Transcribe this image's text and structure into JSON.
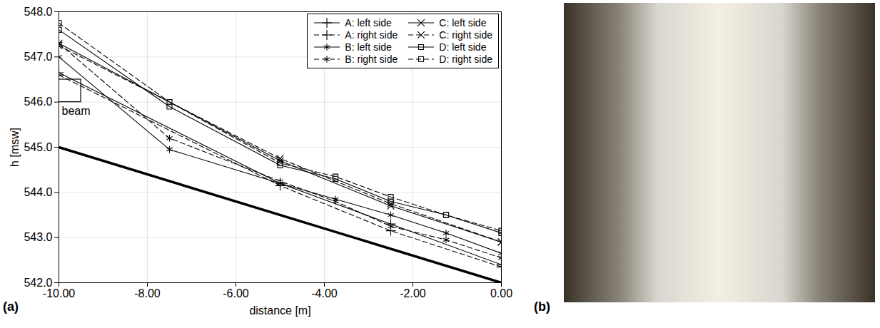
{
  "chart_data": {
    "type": "line",
    "panel_label": "(a)",
    "x_label": "distance [m]",
    "y_label": "h [msw]",
    "xlim": [
      -10,
      0
    ],
    "ylim": [
      542.0,
      548.0
    ],
    "xticks": [
      {
        "value": -10,
        "label": "-10.00"
      },
      {
        "value": -8,
        "label": "-8.00"
      },
      {
        "value": -6,
        "label": "-6.00"
      },
      {
        "value": -4,
        "label": "-4.00"
      },
      {
        "value": -2,
        "label": "-2.00"
      },
      {
        "value": 0,
        "label": "0.00"
      }
    ],
    "yticks": [
      {
        "value": 542,
        "label": "542.0"
      },
      {
        "value": 543,
        "label": "543.0"
      },
      {
        "value": 544,
        "label": "544.0"
      },
      {
        "value": 545,
        "label": "545.0"
      },
      {
        "value": 546,
        "label": "546.0"
      },
      {
        "value": 547,
        "label": "547.0"
      },
      {
        "value": 548,
        "label": "548.0"
      }
    ],
    "grid": true,
    "legend": "upper right",
    "series": [
      {
        "name": "A: left side",
        "color": "#000000",
        "marker": "plus",
        "line_style": "solid",
        "x": [
          -10,
          -5,
          -2.5,
          0
        ],
        "values": [
          546.65,
          544.2,
          543.3,
          542.4
        ]
      },
      {
        "name": "A: right side",
        "color": "#000000",
        "marker": "plus",
        "line_style": "dashed",
        "x": [
          -10,
          -5,
          -2.5,
          0
        ],
        "values": [
          546.6,
          544.15,
          543.15,
          542.35
        ]
      },
      {
        "name": "B: left side",
        "color": "#000000",
        "marker": "asterisk",
        "line_style": "solid",
        "x": [
          -10,
          -7.5,
          -5,
          -3.75,
          -2.5,
          -1.25,
          0
        ],
        "values": [
          547.0,
          544.95,
          544.2,
          543.85,
          543.5,
          543.1,
          542.65
        ]
      },
      {
        "name": "B: right side",
        "color": "#000000",
        "marker": "asterisk",
        "line_style": "dashed",
        "x": [
          -10,
          -7.5,
          -5,
          -3.75,
          -2.5,
          -1.25,
          0
        ],
        "values": [
          547.3,
          545.2,
          544.25,
          543.8,
          543.25,
          542.95,
          542.55
        ]
      },
      {
        "name": "C: left side",
        "color": "#000000",
        "marker": "times",
        "line_style": "solid",
        "x": [
          -10,
          -5,
          -2.5,
          0
        ],
        "values": [
          547.3,
          544.7,
          543.7,
          542.9
        ]
      },
      {
        "name": "C: right side",
        "color": "#000000",
        "marker": "times",
        "line_style": "dashed",
        "x": [
          -10,
          -5,
          -2.5,
          0
        ],
        "values": [
          547.25,
          544.75,
          543.75,
          542.9
        ]
      },
      {
        "name": "D: left side",
        "color": "#000000",
        "marker": "square",
        "line_style": "solid",
        "x": [
          -10,
          -7.5,
          -5,
          -3.75,
          -2.5,
          -1.25,
          0
        ],
        "values": [
          547.6,
          545.9,
          544.6,
          544.3,
          543.8,
          543.5,
          543.1
        ]
      },
      {
        "name": "D: right side",
        "color": "#000000",
        "marker": "square",
        "line_style": "dashed",
        "x": [
          -10,
          -7.5,
          -5,
          -3.75,
          -2.5,
          -1.25,
          0
        ],
        "values": [
          547.75,
          546.0,
          544.65,
          544.35,
          543.9,
          543.5,
          543.15
        ]
      }
    ],
    "bed": {
      "color": "#000000",
      "x": [
        -10,
        0
      ],
      "values": [
        545.0,
        542.0
      ]
    },
    "annotations": [
      {
        "text": "beam",
        "x": [
          -10,
          -9.5
        ],
        "y": [
          546.0,
          546.5
        ]
      }
    ]
  },
  "photo_panel": {
    "label": "(b)"
  }
}
